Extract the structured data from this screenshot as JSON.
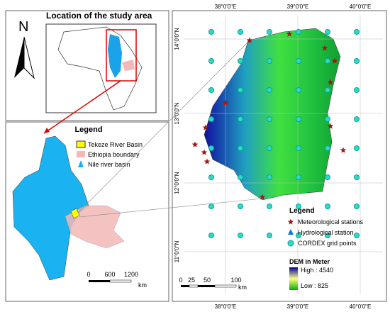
{
  "header": {
    "title": "Location of the study area"
  },
  "north": "N",
  "inset": {
    "legend": {
      "title": "Legend",
      "items": [
        "Tekeze River Basin",
        "Ethiopia boundary",
        "Nile river basin"
      ]
    },
    "scale": {
      "ticks": [
        "0",
        "600",
        "1200"
      ],
      "unit": "km"
    }
  },
  "map": {
    "lon_labels": [
      "38°0'0\"E",
      "39°0'0\"E",
      "40°0'0\"E"
    ],
    "lat_labels": [
      "14°0'0\"N",
      "13°0'0\"N",
      "12°0'0\"N",
      "11°0'0\"N"
    ],
    "legend": {
      "title": "Legend",
      "items": [
        "Meteorological stations",
        "Hydrological station",
        "CORDEX grid points"
      ],
      "dem_title": "DEM in Meter",
      "high": "High : 4540",
      "low": "Low : 825"
    },
    "scale": {
      "ticks": [
        "0",
        "25",
        "50",
        "100"
      ],
      "unit": "km"
    }
  }
}
